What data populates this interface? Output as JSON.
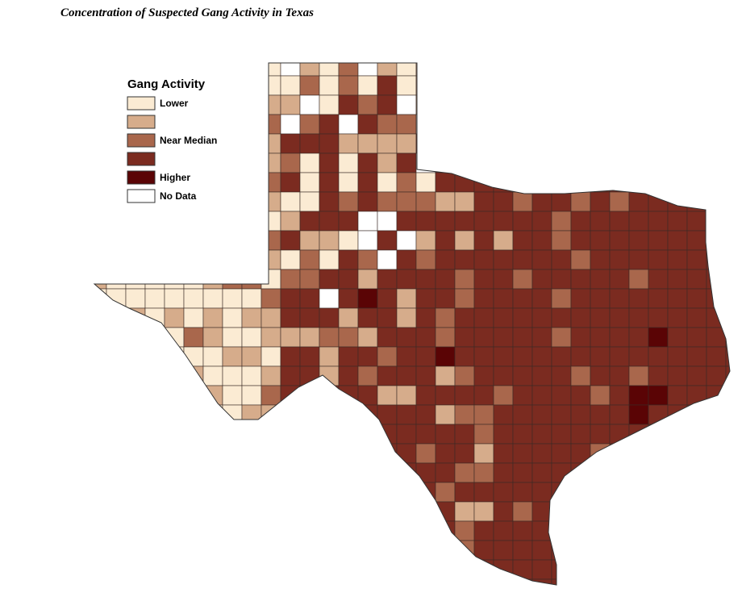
{
  "title": "Concentration of Suspected Gang Activity in Texas",
  "legend": {
    "title": "Gang Activity",
    "items": [
      {
        "label": "Lower",
        "color": "#fbebd3"
      },
      {
        "color": "#d6ac8b"
      },
      {
        "label": "Near Median",
        "color": "#a9674c"
      },
      {
        "color": "#7b2b20"
      },
      {
        "label": "Higher",
        "color": "#5a0405"
      },
      {
        "label": "No Data",
        "color": "#ffffff"
      }
    ]
  }
}
